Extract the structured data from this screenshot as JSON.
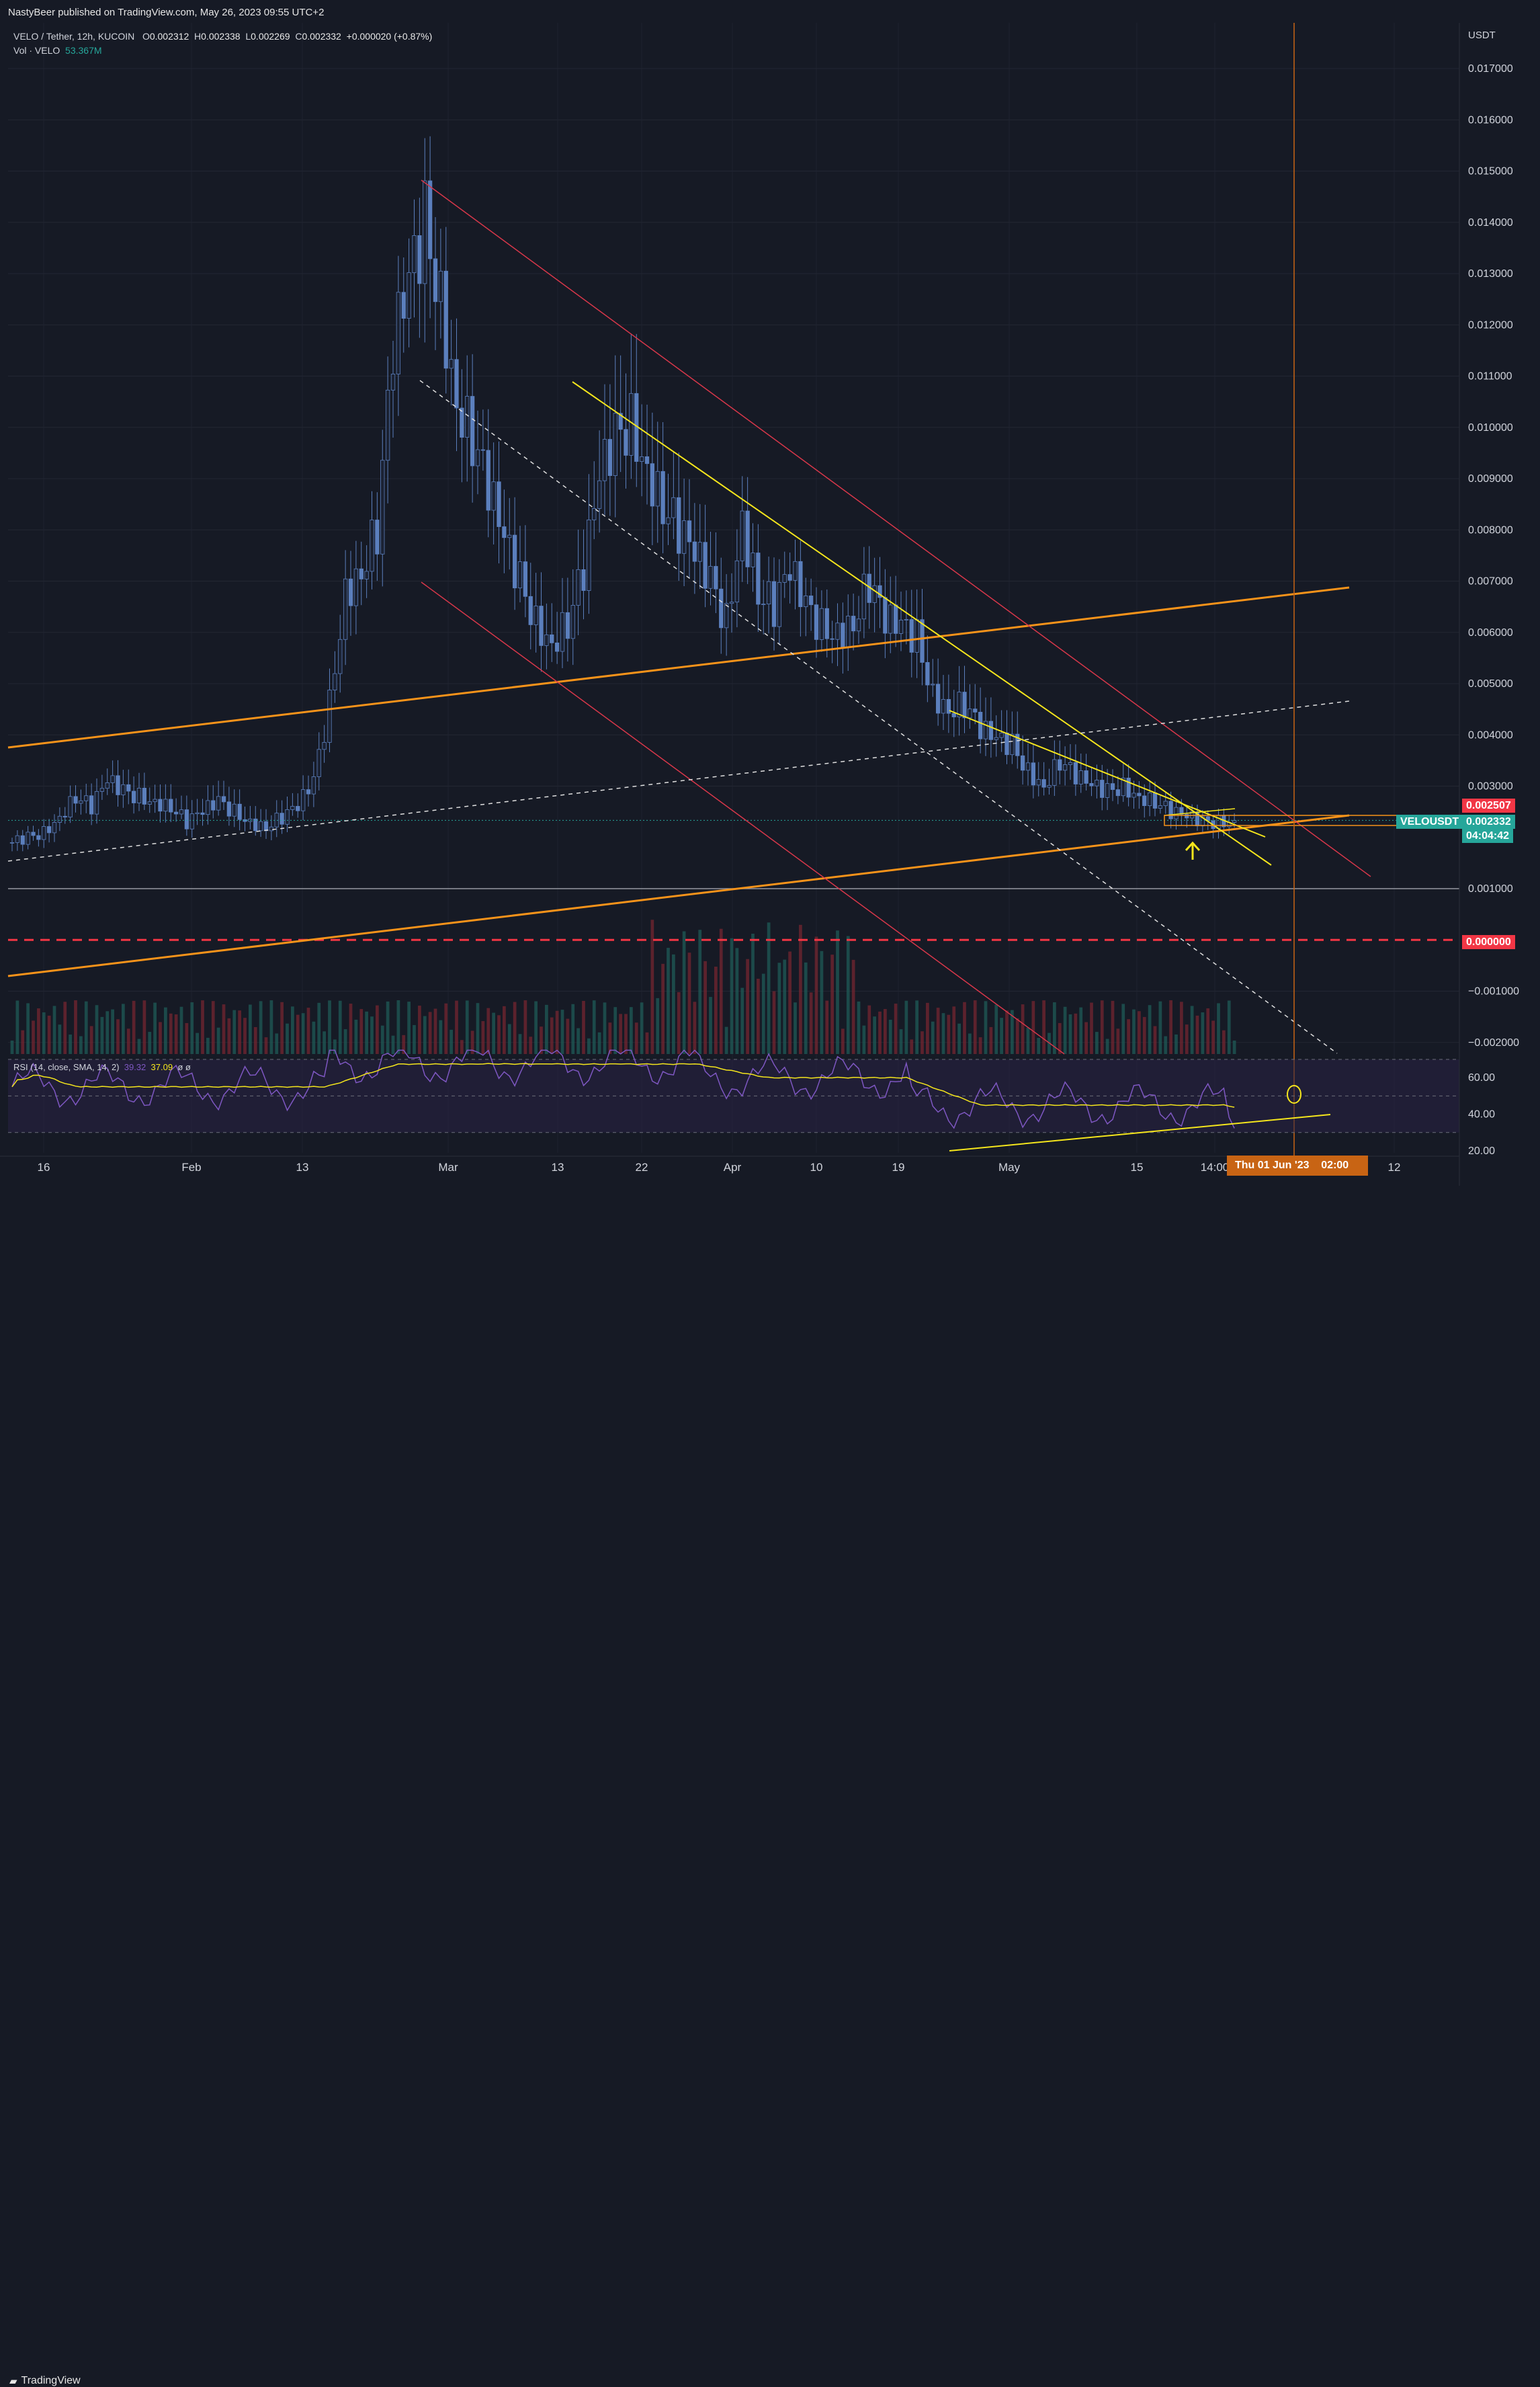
{
  "header": {
    "publish_line": "NastyBeer published on TradingView.com, May 26, 2023 09:55 UTC+2"
  },
  "legend": {
    "symbol": "VELO / Tether, 12h, KUCOIN",
    "o_label": "O",
    "o_value": "0.002312",
    "h_label": "H",
    "h_value": "0.002338",
    "l_label": "L",
    "l_value": "0.002269",
    "c_label": "C",
    "c_value": "0.002332",
    "change": "+0.000020 (+0.87%)",
    "vol_label": "Vol · VELO",
    "vol_value": "53.367M"
  },
  "price_axis": {
    "currency": "USDT",
    "ticks": [
      "0.017000",
      "0.016000",
      "0.015000",
      "0.014000",
      "0.013000",
      "0.012000",
      "0.011000",
      "0.010000",
      "0.009000",
      "0.008000",
      "0.007000",
      "0.006000",
      "0.005000",
      "0.004000",
      "0.003000",
      "0.001000",
      "−0.001000",
      "−0.002000"
    ],
    "zero_label": "0.000000",
    "red_badge": "0.002507",
    "symbol_badge": "VELOUSDT",
    "last_price": "0.002332",
    "countdown": "04:04:42"
  },
  "rsi": {
    "label": "RSI (14, close, SMA, 14, 2)",
    "value1": "39.32",
    "value2": "37.09",
    "extra": "ø ø",
    "ticks": [
      "60.00",
      "40.00",
      "20.00"
    ]
  },
  "time_axis": {
    "labels": [
      "16",
      "Feb",
      "13",
      "Mar",
      "13",
      "22",
      "Apr",
      "10",
      "19",
      "May",
      "15",
      "14:00",
      "12"
    ],
    "cursor_label": "Thu 01 Jun '23",
    "cursor_time": "02:00"
  },
  "footer": {
    "brand": "TradingView"
  },
  "colors": {
    "background": "#161a25",
    "candle": "#5b7fbd",
    "trend_yellow": "#f5e61c",
    "trend_orange": "#f7931a",
    "channel_red": "#d8374a",
    "teal": "#26a69a",
    "rsi_line": "#7e57c2"
  },
  "chart_data": {
    "type": "candlestick",
    "title": "VELO / Tether, 12h, KUCOIN",
    "ylabel": "USDT",
    "ylim": [
      -0.0022,
      0.0178
    ],
    "x_labels": [
      "16",
      "Feb",
      "13",
      "Mar",
      "13",
      "22",
      "Apr",
      "10",
      "19",
      "May",
      "15",
      "14:00",
      "12"
    ],
    "approx_close_path": [
      0.0019,
      0.002,
      0.0021,
      0.0024,
      0.0028,
      0.0026,
      0.0031,
      0.0029,
      0.0028,
      0.0027,
      0.0026,
      0.0023,
      0.0025,
      0.0027,
      0.0025,
      0.0023,
      0.0022,
      0.0024,
      0.0026,
      0.0031,
      0.0046,
      0.0068,
      0.0072,
      0.008,
      0.0115,
      0.0128,
      0.014,
      0.0125,
      0.0105,
      0.0098,
      0.0088,
      0.0078,
      0.007,
      0.0062,
      0.0058,
      0.0062,
      0.0072,
      0.009,
      0.0098,
      0.0101,
      0.0092,
      0.0085,
      0.008,
      0.0075,
      0.007,
      0.0062,
      0.0082,
      0.0068,
      0.0065,
      0.0072,
      0.0065,
      0.0061,
      0.006,
      0.0062,
      0.007,
      0.0062,
      0.0061,
      0.0059,
      0.0048,
      0.0045,
      0.0046,
      0.0041,
      0.0039,
      0.0038,
      0.0033,
      0.003,
      0.0035,
      0.0032,
      0.003,
      0.0029,
      0.003,
      0.0028,
      0.0027,
      0.0025,
      0.0024,
      0.0023,
      0.0023,
      0.00233
    ],
    "last": {
      "open": 0.002312,
      "high": 0.002338,
      "low": 0.002269,
      "close": 0.002332
    },
    "horizontal_lines": [
      0.0,
      0.001
    ],
    "rsi": {
      "ylim": [
        20,
        70
      ],
      "levels": [
        30,
        50,
        70
      ],
      "value": 39.32,
      "sma": 37.09
    }
  }
}
